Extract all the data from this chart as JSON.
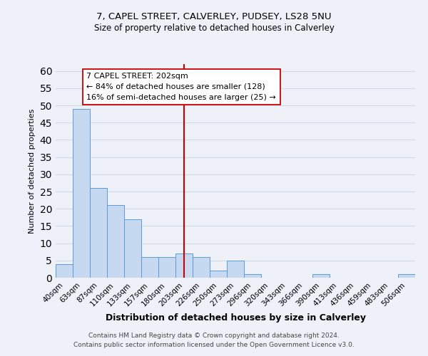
{
  "title_line1": "7, CAPEL STREET, CALVERLEY, PUDSEY, LS28 5NU",
  "title_line2": "Size of property relative to detached houses in Calverley",
  "xlabel": "Distribution of detached houses by size in Calverley",
  "ylabel": "Number of detached properties",
  "bar_labels": [
    "40sqm",
    "63sqm",
    "87sqm",
    "110sqm",
    "133sqm",
    "157sqm",
    "180sqm",
    "203sqm",
    "226sqm",
    "250sqm",
    "273sqm",
    "296sqm",
    "320sqm",
    "343sqm",
    "366sqm",
    "390sqm",
    "413sqm",
    "436sqm",
    "459sqm",
    "483sqm",
    "506sqm"
  ],
  "bar_values": [
    4,
    49,
    26,
    21,
    17,
    6,
    6,
    7,
    6,
    2,
    5,
    1,
    0,
    0,
    0,
    1,
    0,
    0,
    0,
    0,
    1
  ],
  "bar_color": "#c6d9f0",
  "bar_edge_color": "#5b9bd5",
  "annotation_title": "7 CAPEL STREET: 202sqm",
  "annotation_line2": "← 84% of detached houses are smaller (128)",
  "annotation_line3": "16% of semi-detached houses are larger (25) →",
  "vline_x_index": 7,
  "vline_color": "#cc0000",
  "ylim": [
    0,
    62
  ],
  "yticks": [
    0,
    5,
    10,
    15,
    20,
    25,
    30,
    35,
    40,
    45,
    50,
    55,
    60
  ],
  "annotation_box_color": "#ffffff",
  "annotation_box_edge": "#cc0000",
  "grid_color": "#d0d8e8",
  "footer_line1": "Contains HM Land Registry data © Crown copyright and database right 2024.",
  "footer_line2": "Contains public sector information licensed under the Open Government Licence v3.0.",
  "bg_color": "#eef2f8"
}
